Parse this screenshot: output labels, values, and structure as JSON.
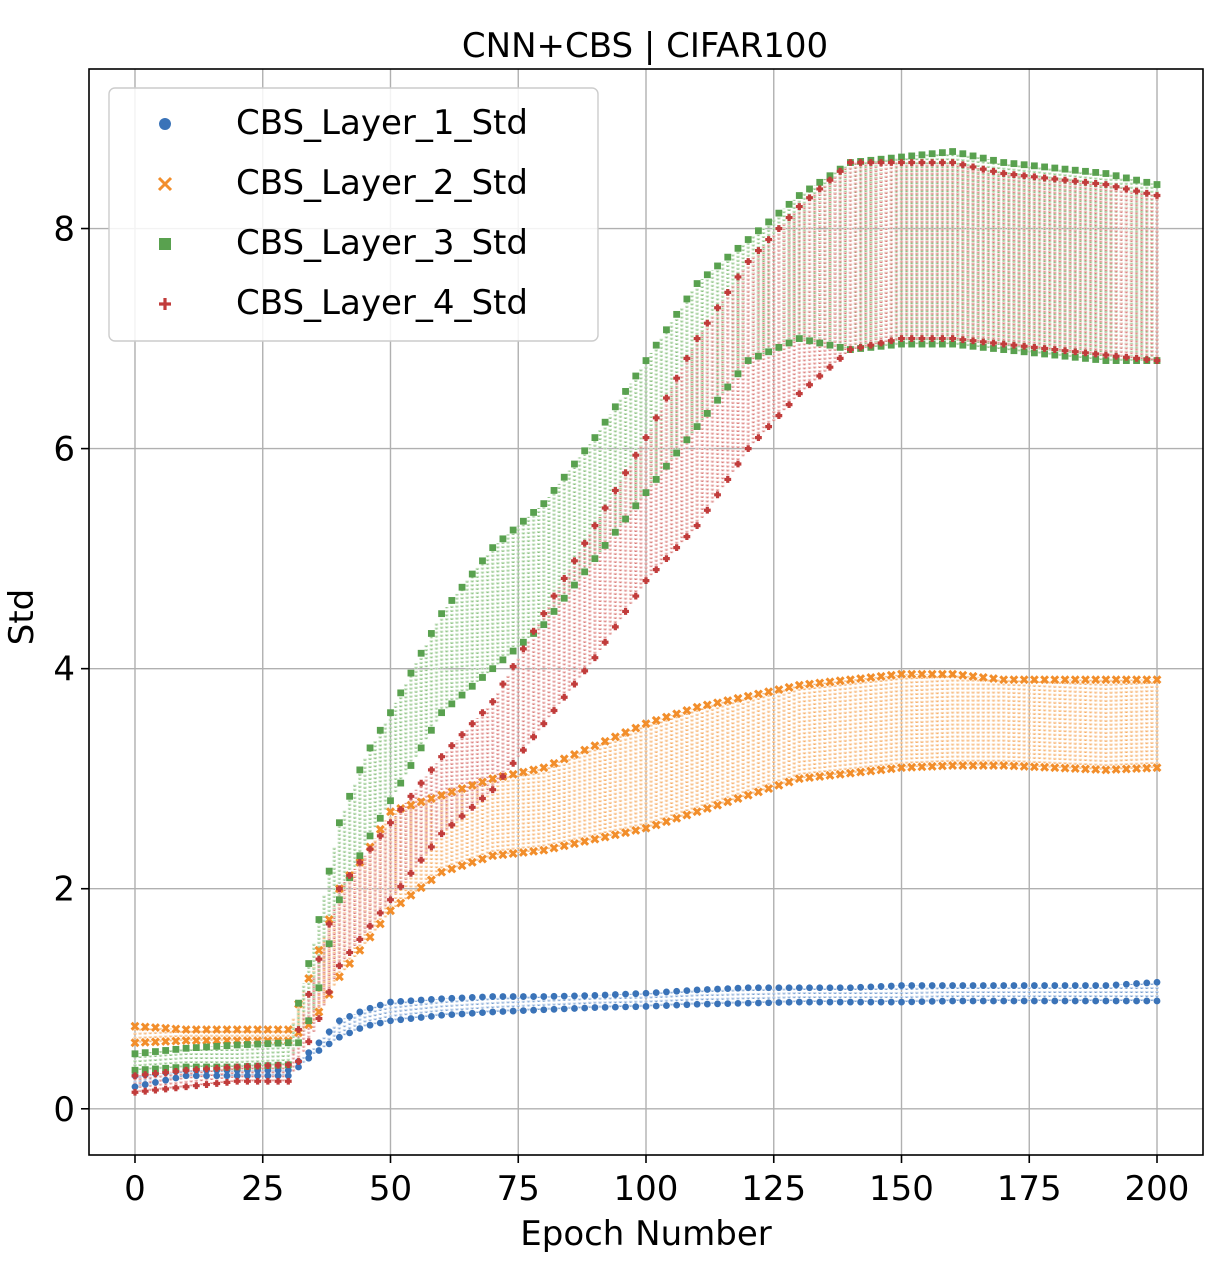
{
  "chart_data": {
    "type": "scatter",
    "title": "CNN+CBS | CIFAR100",
    "xlabel": "Epoch Number",
    "ylabel": "Std",
    "xlim": [
      -9,
      209
    ],
    "ylim": [
      -0.42,
      9.45
    ],
    "xticks": [
      0,
      25,
      50,
      75,
      100,
      125,
      150,
      175,
      200
    ],
    "yticks": [
      0,
      2,
      4,
      6,
      8
    ],
    "grid": true,
    "legend_position": "top-left",
    "series": [
      {
        "name": "CBS_Layer_1_Std",
        "marker": "circle",
        "color": "#3a73b8",
        "light_color": "#c9d9ee",
        "x": [
          0,
          10,
          20,
          30,
          35,
          40,
          45,
          50,
          60,
          70,
          80,
          90,
          100,
          110,
          120,
          130,
          140,
          150,
          160,
          170,
          180,
          190,
          200
        ],
        "low": [
          0.2,
          0.3,
          0.3,
          0.3,
          0.5,
          0.65,
          0.75,
          0.8,
          0.85,
          0.88,
          0.9,
          0.92,
          0.93,
          0.95,
          0.96,
          0.97,
          0.97,
          0.97,
          0.98,
          0.98,
          0.98,
          0.98,
          0.98
        ],
        "high": [
          0.3,
          0.35,
          0.35,
          0.35,
          0.55,
          0.8,
          0.9,
          0.97,
          1.0,
          1.02,
          1.02,
          1.03,
          1.05,
          1.08,
          1.1,
          1.1,
          1.1,
          1.12,
          1.12,
          1.12,
          1.12,
          1.12,
          1.15
        ]
      },
      {
        "name": "CBS_Layer_2_Std",
        "marker": "x",
        "color": "#f28e2b",
        "light_color": "#fbd7b4",
        "x": [
          0,
          10,
          20,
          30,
          35,
          40,
          45,
          50,
          60,
          70,
          80,
          90,
          100,
          110,
          120,
          130,
          140,
          150,
          160,
          170,
          180,
          190,
          200
        ],
        "low": [
          0.6,
          0.62,
          0.62,
          0.62,
          0.8,
          1.2,
          1.5,
          1.8,
          2.15,
          2.3,
          2.35,
          2.45,
          2.55,
          2.7,
          2.85,
          3.0,
          3.05,
          3.1,
          3.12,
          3.12,
          3.1,
          3.08,
          3.1
        ],
        "high": [
          0.75,
          0.72,
          0.72,
          0.72,
          1.3,
          2.0,
          2.3,
          2.7,
          2.85,
          3.0,
          3.1,
          3.3,
          3.5,
          3.65,
          3.75,
          3.85,
          3.9,
          3.95,
          3.95,
          3.9,
          3.9,
          3.9,
          3.9
        ]
      },
      {
        "name": "CBS_Layer_3_Std",
        "marker": "square",
        "color": "#59a14f",
        "light_color": "#c6e2c0",
        "x": [
          0,
          10,
          20,
          30,
          35,
          40,
          45,
          50,
          60,
          70,
          80,
          90,
          100,
          110,
          120,
          130,
          140,
          150,
          160,
          170,
          180,
          190,
          200
        ],
        "low": [
          0.35,
          0.38,
          0.38,
          0.4,
          0.9,
          1.9,
          2.4,
          2.8,
          3.6,
          4.0,
          4.4,
          5.0,
          5.6,
          6.2,
          6.8,
          7.0,
          6.9,
          6.95,
          6.95,
          6.9,
          6.85,
          6.8,
          6.8
        ],
        "high": [
          0.5,
          0.55,
          0.58,
          0.6,
          1.5,
          2.6,
          3.2,
          3.6,
          4.5,
          5.1,
          5.5,
          6.1,
          6.8,
          7.5,
          7.9,
          8.3,
          8.6,
          8.65,
          8.7,
          8.6,
          8.55,
          8.5,
          8.4
        ]
      },
      {
        "name": "CBS_Layer_4_Std",
        "marker": "plus",
        "color": "#c13c3b",
        "light_color": "#f0c2c0",
        "x": [
          0,
          10,
          20,
          30,
          35,
          40,
          45,
          50,
          60,
          70,
          80,
          90,
          100,
          110,
          120,
          130,
          140,
          150,
          160,
          170,
          180,
          190,
          200
        ],
        "low": [
          0.15,
          0.2,
          0.25,
          0.25,
          0.7,
          1.3,
          1.6,
          1.9,
          2.5,
          2.9,
          3.5,
          4.1,
          4.8,
          5.3,
          6.0,
          6.5,
          6.9,
          7.0,
          7.0,
          6.95,
          6.9,
          6.85,
          6.8
        ],
        "high": [
          0.3,
          0.35,
          0.38,
          0.4,
          1.2,
          2.0,
          2.3,
          2.6,
          3.2,
          3.7,
          4.5,
          5.3,
          6.1,
          7.0,
          7.7,
          8.2,
          8.6,
          8.6,
          8.6,
          8.5,
          8.45,
          8.4,
          8.3
        ]
      }
    ]
  }
}
